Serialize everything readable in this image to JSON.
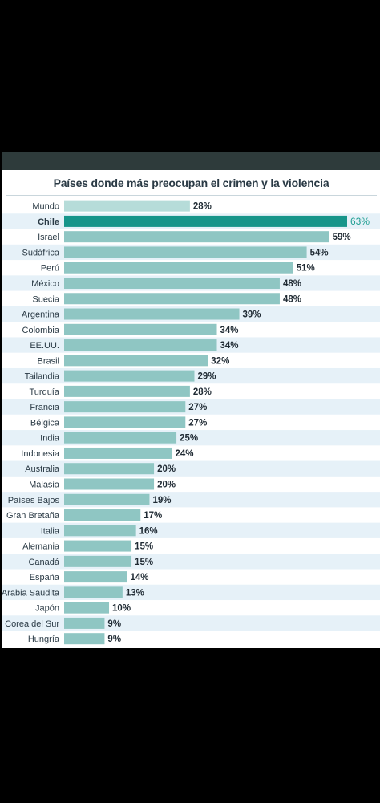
{
  "colors": {
    "page_background": "#000000",
    "header_band": "#2e3b3b",
    "panel_background": "#ffffff",
    "row_stripe": "#e6f1f8",
    "bar_default": "#8fc6c3",
    "bar_reference": "#b6dcd9",
    "bar_highlight": "#17958a",
    "highlight_label": "#1e9e92"
  },
  "chart_data": {
    "type": "bar",
    "orientation": "horizontal",
    "title": "Países donde más preocupan el crimen y la violencia",
    "categories": [
      "Mundo",
      "Chile",
      "Israel",
      "Sudáfrica",
      "Perú",
      "México",
      "Suecia",
      "Argentina",
      "Colombia",
      "EE.UU.",
      "Brasil",
      "Tailandia",
      "Turquía",
      "Francia",
      "Bélgica",
      "India",
      "Indonesia",
      "Australia",
      "Malasia",
      "Países Bajos",
      "Gran Bretaña",
      "Italia",
      "Alemania",
      "Canadá",
      "España",
      "Arabia Saudita",
      "Japón",
      "Corea del Sur",
      "Hungría"
    ],
    "values": [
      28,
      63,
      59,
      54,
      51,
      48,
      48,
      39,
      34,
      34,
      32,
      29,
      28,
      27,
      27,
      25,
      24,
      20,
      20,
      19,
      17,
      16,
      15,
      15,
      14,
      13,
      10,
      9,
      9
    ],
    "value_labels": [
      "28%",
      "63%",
      "59%",
      "54%",
      "51%",
      "48%",
      "48%",
      "39%",
      "34%",
      "34%",
      "32%",
      "29%",
      "28%",
      "27%",
      "27%",
      "25%",
      "24%",
      "20%",
      "20%",
      "19%",
      "17%",
      "16%",
      "15%",
      "15%",
      "14%",
      "13%",
      "10%",
      "9%",
      "9%"
    ],
    "unit": "%",
    "highlight": "Chile",
    "reference": "Mundo",
    "xlim": [
      0,
      63
    ],
    "grid": false,
    "legend": "none"
  }
}
